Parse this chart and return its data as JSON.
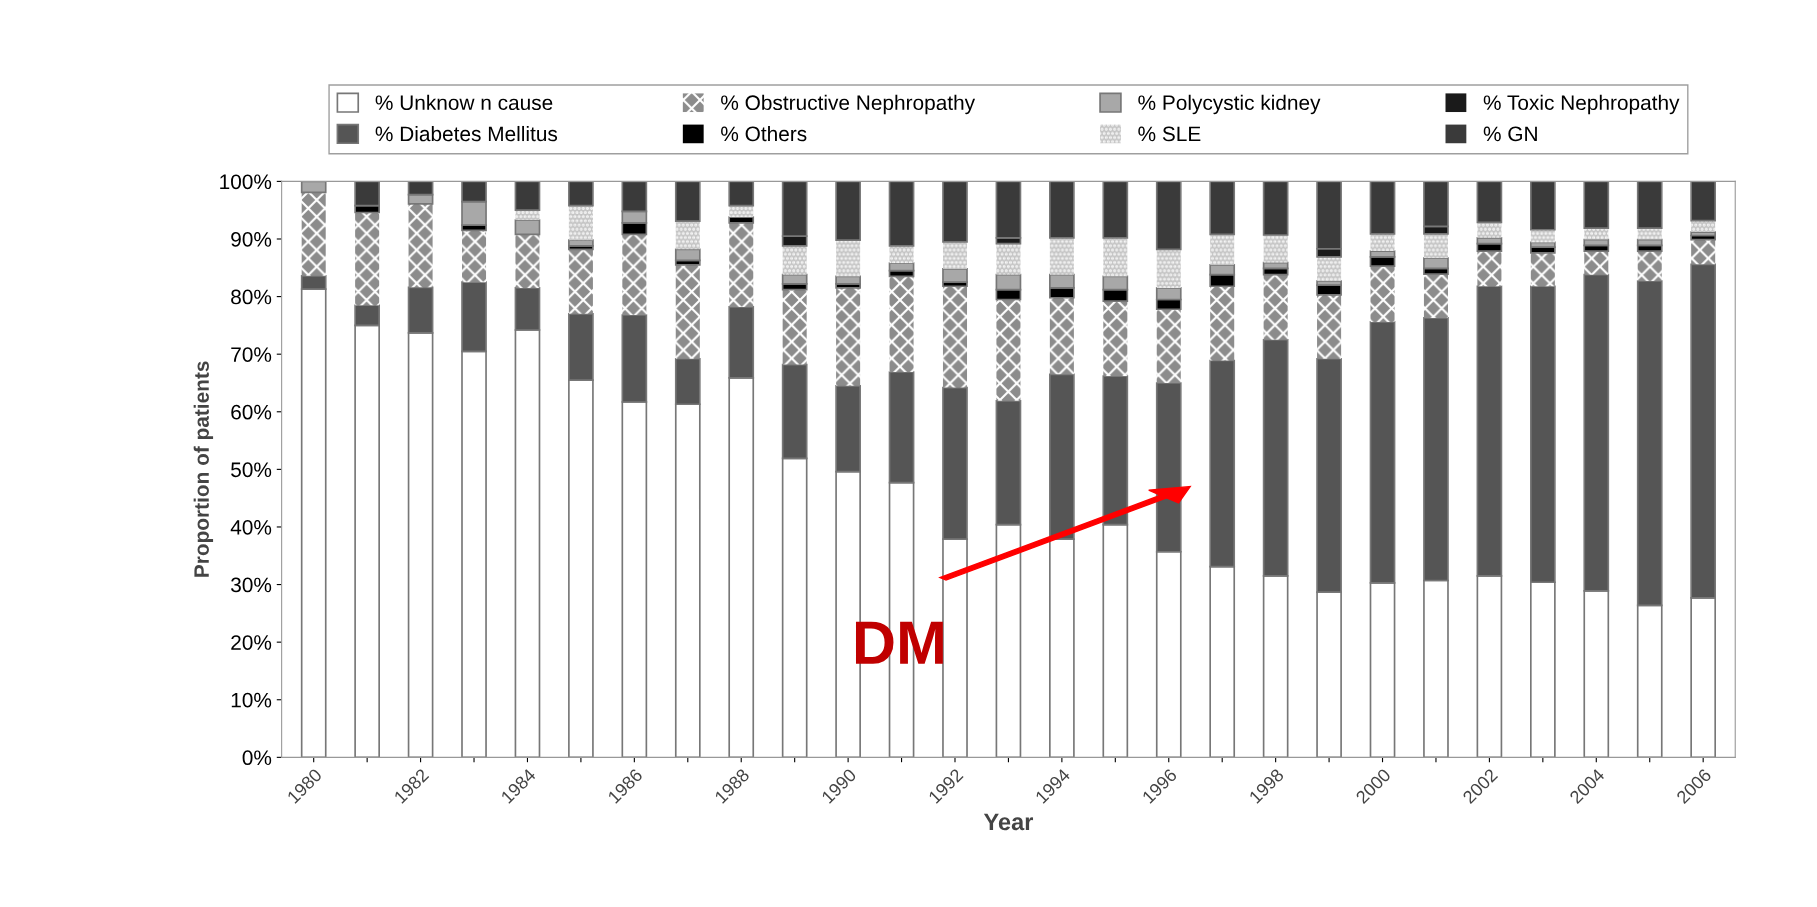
{
  "chart_data": {
    "type": "bar",
    "stacked": true,
    "xlabel": "Year",
    "ylabel": "Proportion of patients",
    "categories": [
      "1980",
      null,
      "1982",
      null,
      "1984",
      null,
      "1986",
      null,
      "1988",
      null,
      "1990",
      null,
      "1992",
      null,
      "1994",
      null,
      "1996",
      null,
      "1998",
      null,
      "2000",
      null,
      "2002",
      null,
      "2004",
      null,
      "2006"
    ],
    "series": [
      {
        "name": "% Unknow n cause",
        "color": "#ffffff",
        "values": [
          81.3,
          75.0,
          73.7,
          70.5,
          74.2,
          65.5,
          61.7,
          61.3,
          65.9,
          51.9,
          49.6,
          47.7,
          37.9,
          40.4,
          37.9,
          40.4,
          35.7,
          33.1,
          31.5,
          28.7,
          30.3,
          30.7,
          31.5,
          30.4,
          28.9,
          26.4,
          27.7
        ]
      },
      {
        "name": "% Diabetes Mellitus",
        "color": "#555555",
        "values": [
          2.3,
          3.5,
          7.9,
          12.0,
          7.3,
          11.5,
          15.1,
          7.9,
          12.3,
          16.3,
          14.9,
          19.2,
          26.3,
          21.5,
          28.6,
          25.8,
          29.3,
          35.8,
          41.0,
          40.5,
          45.3,
          45.6,
          50.3,
          51.4,
          54.9,
          56.3,
          57.9
        ]
      },
      {
        "name": "% Obstructive Nephropathy",
        "color": "#8c8c8c",
        "values": [
          14.5,
          16.1,
          14.5,
          9.0,
          9.3,
          11.2,
          14.0,
          16.3,
          14.6,
          13.0,
          17.0,
          16.6,
          17.6,
          17.6,
          13.3,
          13.0,
          12.8,
          12.9,
          11.3,
          11.1,
          9.7,
          7.6,
          6.1,
          5.8,
          4.1,
          5.2,
          4.3
        ]
      },
      {
        "name": "% Others",
        "color": "#000000",
        "values": [
          0,
          1.2,
          0,
          0.9,
          0,
          0.6,
          2.0,
          0.8,
          1.0,
          1.0,
          0.7,
          1.0,
          0.7,
          1.7,
          1.7,
          2.0,
          1.7,
          2.0,
          1.1,
          1.7,
          1.6,
          1.0,
          1.3,
          1.0,
          1.0,
          1.0,
          0.7
        ]
      },
      {
        "name": "% Polycystic kidney",
        "color": "#a8a8a8",
        "values": [
          1.9,
          0,
          1.6,
          4.1,
          2.5,
          1.0,
          2.0,
          1.9,
          0,
          1.6,
          1.3,
          1.3,
          2.3,
          2.6,
          2.3,
          2.3,
          2.0,
          1.7,
          1.0,
          0.7,
          1.0,
          1.8,
          1.0,
          0.8,
          1.0,
          1.0,
          0.6
        ]
      },
      {
        "name": "% SLE",
        "color": "#c4c4c4",
        "values": [
          0,
          0,
          0,
          0,
          1.7,
          6.0,
          0,
          4.9,
          2.0,
          5.0,
          6.3,
          3.0,
          4.7,
          5.4,
          6.4,
          6.7,
          6.7,
          5.3,
          4.8,
          4.2,
          3.0,
          4.2,
          2.7,
          2.2,
          2.0,
          2.0,
          2.0
        ]
      },
      {
        "name": "% Toxic Nephropathy",
        "color": "#1a1a1a",
        "values": [
          0,
          0,
          0,
          0,
          0,
          0,
          0,
          0,
          0,
          1.7,
          0,
          0,
          0,
          1.0,
          0,
          0,
          0,
          0,
          0,
          1.4,
          0,
          1.3,
          0,
          0,
          0,
          0,
          0
        ]
      },
      {
        "name": "% GN",
        "color": "#3a3a3a",
        "values": [
          0,
          4.2,
          2.3,
          3.5,
          5.0,
          4.2,
          5.2,
          6.9,
          4.2,
          9.5,
          10.2,
          11.2,
          10.5,
          9.8,
          9.8,
          9.8,
          11.8,
          9.2,
          9.3,
          11.7,
          9.1,
          7.8,
          7.1,
          8.4,
          8.1,
          8.1,
          6.8
        ]
      }
    ],
    "ylim": [
      0,
      100
    ],
    "yticks": [
      {
        "value": 0,
        "label": "0%"
      },
      {
        "value": 10,
        "label": "10%"
      },
      {
        "value": 20,
        "label": "20%"
      },
      {
        "value": 30,
        "label": "30%"
      },
      {
        "value": 40,
        "label": "40%"
      },
      {
        "value": 50,
        "label": "50%"
      },
      {
        "value": 60,
        "label": "60%"
      },
      {
        "value": 70,
        "label": "70%"
      },
      {
        "value": 80,
        "label": "80%"
      },
      {
        "value": 90,
        "label": "90%"
      },
      {
        "value": 100,
        "label": "100%"
      }
    ],
    "legend": "top",
    "annotations": [
      "DM"
    ]
  }
}
